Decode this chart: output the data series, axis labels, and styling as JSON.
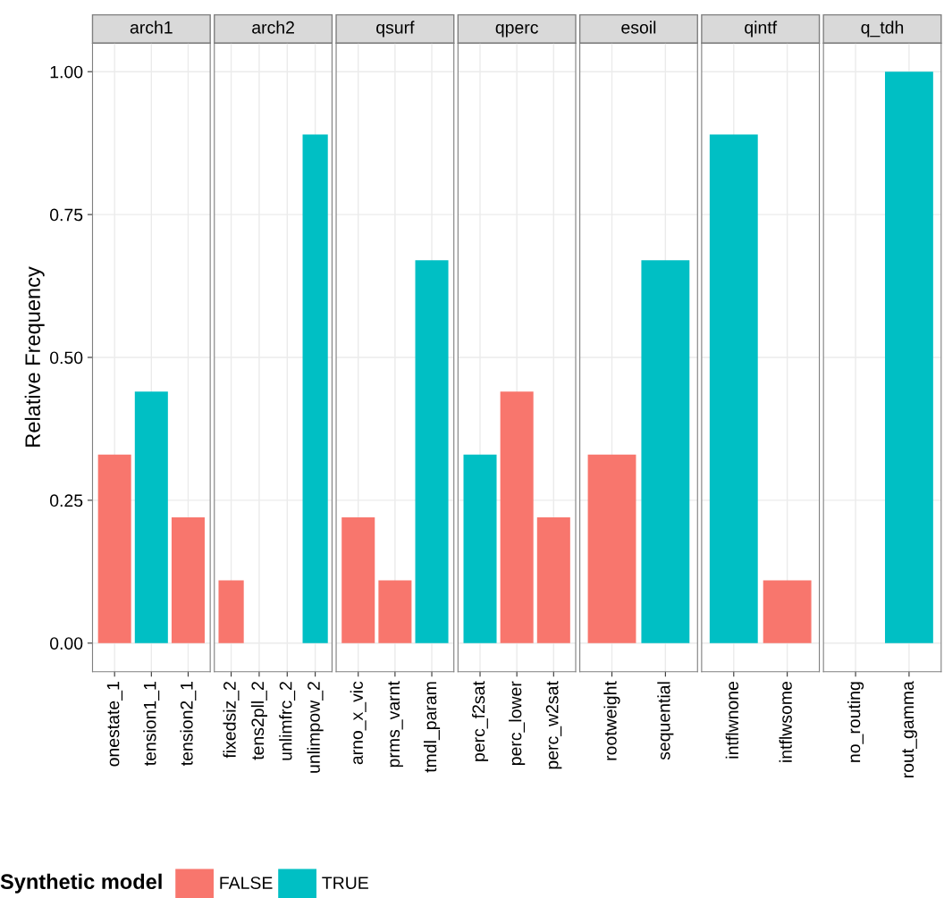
{
  "chart_data": [
    {
      "type": "bar",
      "title": "arch1",
      "ylabel": "Relative Frequency",
      "categories": [
        "onestate_1",
        "tension1_1",
        "tension2_1"
      ],
      "stacked": true,
      "legend": "bottom",
      "legend_title": "Synthetic model",
      "grid": true,
      "tick_labels": "xy",
      "ylim": [
        -0.05,
        1.05
      ],
      "yticks": [
        {
          "value": 0,
          "label": "0.00"
        },
        {
          "value": 0.25,
          "label": "0.25"
        },
        {
          "value": 0.5,
          "label": "0.50"
        },
        {
          "value": 0.75,
          "label": "0.75"
        },
        {
          "value": 1,
          "label": "1.00"
        }
      ],
      "series": [
        {
          "name": "FALSE",
          "color": "#f8766d",
          "values": [
            0.33,
            null,
            0.22
          ]
        },
        {
          "name": "TRUE",
          "color": "#00bfc4",
          "values": [
            null,
            0.44,
            null
          ]
        }
      ]
    },
    {
      "type": "bar",
      "title": "arch2",
      "categories": [
        "fixedsiz_2",
        "tens2pll_2",
        "unlimfrc_2",
        "unlimpow_2"
      ],
      "stacked": true,
      "grid": true,
      "tick_labels": "x",
      "ylim": [
        -0.05,
        1.05
      ],
      "series": [
        {
          "color": "#f8766d",
          "values": [
            0.11,
            null,
            null,
            null
          ]
        },
        {
          "color": "#00bfc4",
          "values": [
            null,
            null,
            null,
            0.89
          ]
        }
      ]
    },
    {
      "type": "bar",
      "title": "qsurf",
      "categories": [
        "arno_x_vic",
        "prms_varnt",
        "tmdl_param"
      ],
      "stacked": true,
      "grid": true,
      "tick_labels": "x",
      "ylim": [
        -0.05,
        1.05
      ],
      "series": [
        {
          "color": "#f8766d",
          "values": [
            0.22,
            0.11,
            null
          ]
        },
        {
          "color": "#00bfc4",
          "values": [
            null,
            null,
            0.67
          ]
        }
      ]
    },
    {
      "type": "bar",
      "title": "qperc",
      "categories": [
        "perc_f2sat",
        "perc_lower",
        "perc_w2sat"
      ],
      "stacked": true,
      "grid": true,
      "tick_labels": "x",
      "ylim": [
        -0.05,
        1.05
      ],
      "series": [
        {
          "color": "#f8766d",
          "values": [
            null,
            0.44,
            0.22
          ]
        },
        {
          "color": "#00bfc4",
          "values": [
            0.33,
            null,
            null
          ]
        }
      ]
    },
    {
      "type": "bar",
      "title": "esoil",
      "categories": [
        "rootweight",
        "sequential"
      ],
      "stacked": true,
      "grid": true,
      "tick_labels": "x",
      "ylim": [
        -0.05,
        1.05
      ],
      "series": [
        {
          "color": "#f8766d",
          "values": [
            0.33,
            null
          ]
        },
        {
          "color": "#00bfc4",
          "values": [
            null,
            0.67
          ]
        }
      ]
    },
    {
      "type": "bar",
      "title": "qintf",
      "categories": [
        "intflwnone",
        "intflwsome"
      ],
      "stacked": true,
      "grid": true,
      "tick_labels": "x",
      "ylim": [
        -0.05,
        1.05
      ],
      "series": [
        {
          "color": "#f8766d",
          "values": [
            null,
            0.11
          ]
        },
        {
          "color": "#00bfc4",
          "values": [
            0.89,
            null
          ]
        }
      ]
    },
    {
      "type": "bar",
      "title": "q_tdh",
      "categories": [
        "no_routing",
        "rout_gamma"
      ],
      "stacked": true,
      "grid": true,
      "tick_labels": "x",
      "ylim": [
        -0.05,
        1.05
      ],
      "series": [
        {
          "color": "#00bfc4",
          "values": [
            null,
            1.0
          ]
        }
      ]
    }
  ]
}
